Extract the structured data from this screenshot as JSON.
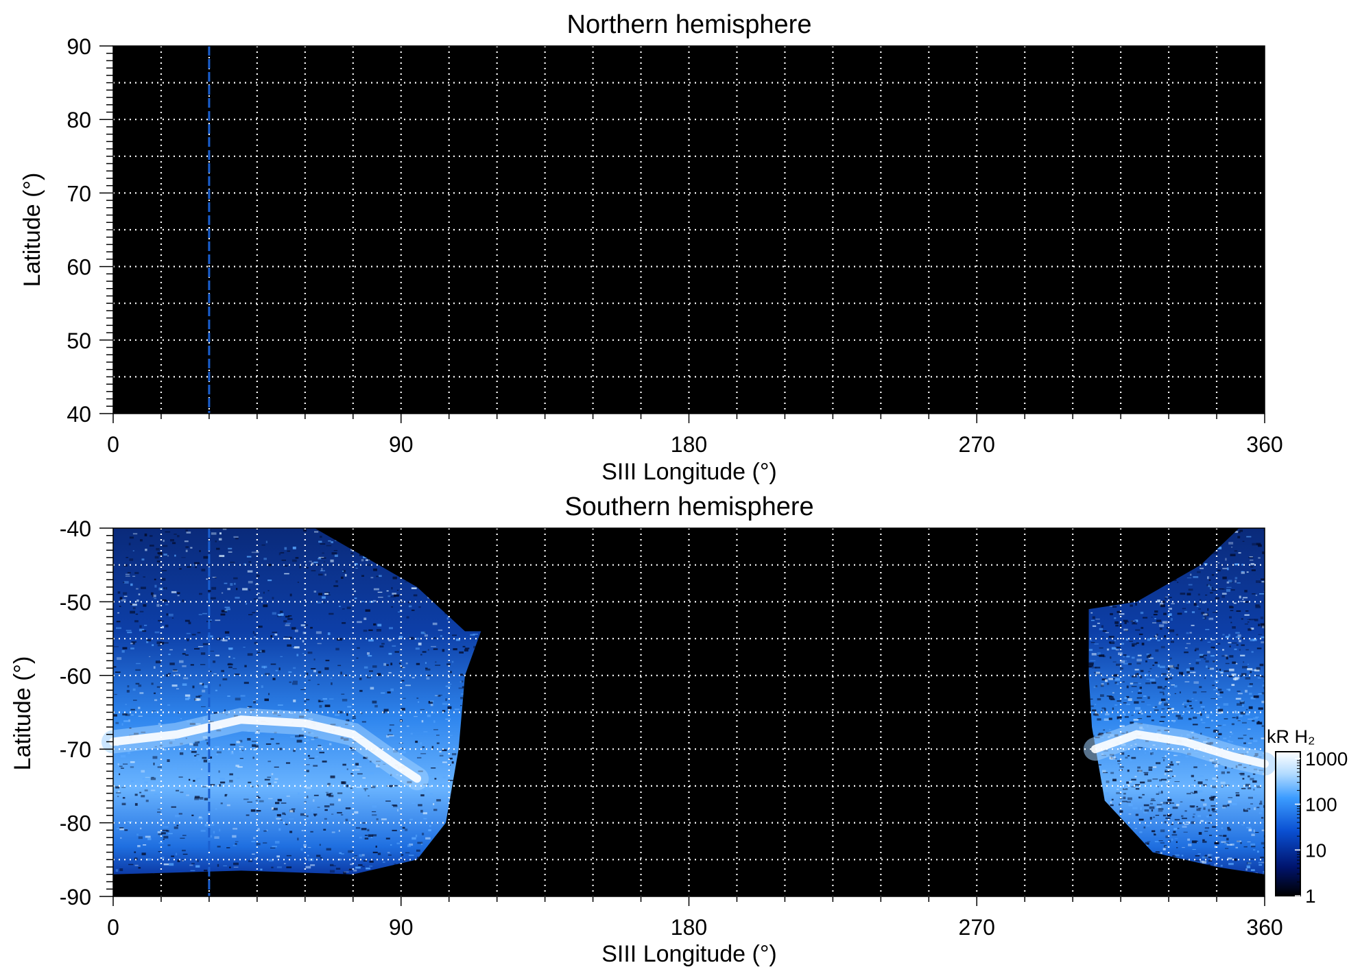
{
  "chart_data": [
    {
      "type": "heatmap",
      "title": "Northern hemisphere",
      "xlabel": "SIII Longitude (°)",
      "ylabel": "Latitude (°)",
      "xlim": [
        0,
        360
      ],
      "ylim": [
        40,
        90
      ],
      "x_ticks": [
        "0",
        "90",
        "180",
        "270",
        "360"
      ],
      "y_ticks": [
        "40",
        "50",
        "60",
        "70",
        "80",
        "90"
      ],
      "grid": true,
      "grid_x_step": 15,
      "grid_y_step": 5,
      "emission_regions": [],
      "marker_longitude": 30
    },
    {
      "type": "heatmap",
      "title": "Southern hemisphere",
      "xlabel": "SIII Longitude (°)",
      "ylabel": "Latitude (°)",
      "xlim": [
        0,
        360
      ],
      "ylim": [
        -90,
        -40
      ],
      "x_ticks": [
        "0",
        "90",
        "180",
        "270",
        "360"
      ],
      "y_ticks": [
        "-90",
        "-80",
        "-70",
        "-60",
        "-50",
        "-40"
      ],
      "grid": true,
      "grid_x_step": 15,
      "grid_y_step": 5,
      "marker_longitude": 30,
      "emission_regions": [
        {
          "name": "left",
          "boundary": [
            [
              0,
              -40
            ],
            [
              63,
              -40
            ],
            [
              95,
              -48
            ],
            [
              110,
              -54
            ],
            [
              115,
              -54
            ],
            [
              110,
              -60
            ],
            [
              108,
              -70
            ],
            [
              104,
              -80
            ],
            [
              95,
              -85
            ],
            [
              75,
              -87
            ],
            [
              40,
              -86.5
            ],
            [
              0,
              -87
            ]
          ]
        },
        {
          "name": "right",
          "boundary": [
            [
              305,
              -51
            ],
            [
              320,
              -50
            ],
            [
              340,
              -45
            ],
            [
              352,
              -40
            ],
            [
              360,
              -40
            ],
            [
              360,
              -87
            ],
            [
              345,
              -86
            ],
            [
              325,
              -84
            ],
            [
              310,
              -77
            ],
            [
              306,
              -67
            ],
            [
              305,
              -60
            ]
          ]
        }
      ],
      "auroral_oval_segments": [
        {
          "points": [
            [
              0,
              -69
            ],
            [
              20,
              -68
            ],
            [
              40,
              -66
            ],
            [
              60,
              -66.5
            ],
            [
              75,
              -68
            ],
            [
              88,
              -72
            ],
            [
              95,
              -74
            ]
          ]
        },
        {
          "points": [
            [
              307,
              -70
            ],
            [
              320,
              -68
            ],
            [
              335,
              -69
            ],
            [
              350,
              -71
            ],
            [
              360,
              -72
            ]
          ]
        }
      ]
    }
  ],
  "colorbar": {
    "label": "kR H₂",
    "scale": "log",
    "ticks": [
      "1",
      "10",
      "100",
      "1000"
    ],
    "colors": [
      "#000000",
      "#00146e",
      "#0a50d2",
      "#3c9cff",
      "#b4dcff",
      "#ffffff"
    ]
  }
}
